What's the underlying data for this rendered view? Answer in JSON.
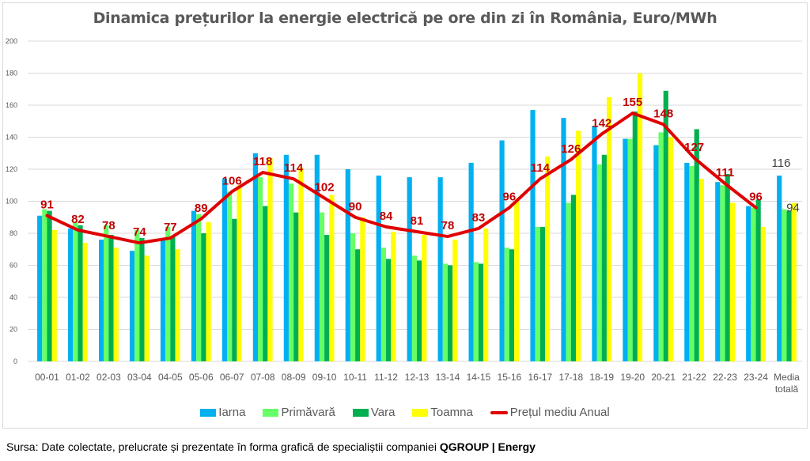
{
  "chart_data": {
    "type": "bar",
    "title": "Dinamica prețurilor la energie electrică pe ore din zi în România, Euro/MWh",
    "xlabel": "",
    "ylabel": "",
    "ylim": [
      0,
      200
    ],
    "yticks": [
      0,
      20,
      40,
      60,
      80,
      100,
      120,
      140,
      160,
      180,
      200
    ],
    "grid": true,
    "legend_position": "bottom",
    "categories": [
      "00-01",
      "01-02",
      "02-03",
      "03-04",
      "04-05",
      "05-06",
      "06-07",
      "07-08",
      "08-09",
      "09-10",
      "10-11",
      "11-12",
      "12-13",
      "13-14",
      "14-15",
      "15-16",
      "16-17",
      "17-18",
      "18-19",
      "19-20",
      "20-21",
      "21-22",
      "22-23",
      "23-24",
      "Media totală"
    ],
    "series": [
      {
        "name": "Iarna",
        "type": "bar",
        "color": "#00B0F0",
        "values": [
          91,
          83,
          76,
          69,
          76,
          94,
          114,
          130,
          129,
          129,
          120,
          116,
          115,
          115,
          124,
          138,
          157,
          152,
          147,
          139,
          135,
          124,
          112,
          97,
          116
        ]
      },
      {
        "name": "Primăvară",
        "type": "bar",
        "color": "#66FF66",
        "values": [
          95,
          87,
          85,
          82,
          84,
          92,
          106,
          115,
          111,
          93,
          80,
          71,
          66,
          61,
          62,
          71,
          84,
          99,
          123,
          139,
          143,
          122,
          110,
          96,
          95
        ]
      },
      {
        "name": "Vara",
        "type": "bar",
        "color": "#00B050",
        "values": [
          94,
          85,
          79,
          77,
          78,
          80,
          89,
          97,
          93,
          79,
          70,
          64,
          63,
          60,
          61,
          70,
          84,
          104,
          129,
          156,
          169,
          145,
          117,
          101,
          94
        ]
      },
      {
        "name": "Toamna",
        "type": "bar",
        "color": "#FFFF00",
        "values": [
          82,
          74,
          71,
          66,
          70,
          87,
          110,
          127,
          121,
          104,
          90,
          81,
          79,
          76,
          83,
          100,
          128,
          144,
          165,
          180,
          140,
          114,
          99,
          84,
          99
        ]
      },
      {
        "name": "Prețul mediu Anual",
        "type": "line",
        "color": "#E00000",
        "values": [
          91,
          82,
          78,
          74,
          77,
          89,
          106,
          118,
          114,
          102,
          90,
          84,
          81,
          78,
          83,
          96,
          114,
          126,
          142,
          155,
          148,
          127,
          111,
          96,
          null
        ]
      }
    ],
    "data_labels": {
      "line": [
        91,
        82,
        78,
        74,
        77,
        89,
        106,
        118,
        114,
        102,
        90,
        84,
        81,
        78,
        83,
        96,
        114,
        126,
        142,
        155,
        148,
        127,
        111,
        96
      ],
      "media_blue": "116",
      "media_green": "94"
    }
  },
  "legend": {
    "items": [
      {
        "label": "Iarna",
        "color": "#00B0F0"
      },
      {
        "label": "Primăvară",
        "color": "#66FF66"
      },
      {
        "label": "Vara",
        "color": "#00B050"
      },
      {
        "label": "Toamna",
        "color": "#FFFF00"
      },
      {
        "label": "Prețul mediu Anual",
        "color": "#E00000"
      }
    ]
  },
  "source": {
    "prefix": "Sursa: Date colectate, prelucrate și prezentate în forma grafică de specialiștii companiei ",
    "brand": "QGROUP | Energy"
  },
  "colors": {
    "label_red": "#C00000",
    "axis_text": "#595959",
    "grid": "#d9d9d9"
  }
}
